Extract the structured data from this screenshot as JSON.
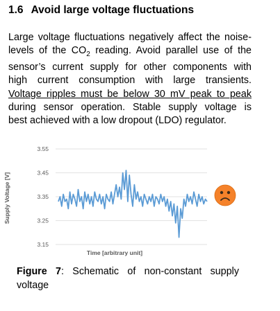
{
  "section": {
    "number": "1.6",
    "title": "Avoid large voltage fluctuations"
  },
  "paragraph": {
    "l1": "Large voltage fluctuations negatively affect the noise-",
    "l2a": "levels of the CO",
    "l2sub": "2",
    "l2b": " reading. Avoid parallel use of the",
    "l3": "sensor’s current supply for other components with",
    "l4": "high current consumption with large transients.",
    "l5": "Voltage ripples must be below 30 mV peak to peak",
    "l6": "during sensor operation. Stable supply voltage is",
    "l7": "best achieved with a low dropout (LDO) regulator."
  },
  "chart_data": {
    "type": "line",
    "xlabel": "Time [arbitrary unit]",
    "ylabel": "Supply Voltage [V]",
    "ylim": [
      3.15,
      3.55
    ],
    "yticks": [
      "3.55",
      "3.45",
      "3.35",
      "3.25",
      "3.15"
    ],
    "grid": true,
    "legend": "none",
    "series": [
      {
        "values": [
          3.33,
          3.35,
          3.31,
          3.36,
          3.33,
          3.34,
          3.3,
          3.37,
          3.32,
          3.36,
          3.34,
          3.31,
          3.38,
          3.33,
          3.35,
          3.3,
          3.37,
          3.33,
          3.36,
          3.32,
          3.35,
          3.31,
          3.37,
          3.34,
          3.33,
          3.36,
          3.32,
          3.35,
          3.3,
          3.36,
          3.34,
          3.33,
          3.37,
          3.32,
          3.36,
          3.4,
          3.35,
          3.39,
          3.34,
          3.45,
          3.38,
          3.46,
          3.33,
          3.44,
          3.36,
          3.31,
          3.4,
          3.34,
          3.37,
          3.33,
          3.35,
          3.31,
          3.36,
          3.34,
          3.32,
          3.35,
          3.33,
          3.36,
          3.31,
          3.35,
          3.34,
          3.32,
          3.36,
          3.33,
          3.35,
          3.31,
          3.34,
          3.29,
          3.33,
          3.27,
          3.32,
          3.24,
          3.31,
          3.18,
          3.3,
          3.26,
          3.34,
          3.31,
          3.36,
          3.33,
          3.35,
          3.32,
          3.37,
          3.34,
          3.31,
          3.36,
          3.33,
          3.35,
          3.32,
          3.34,
          3.33
        ],
        "color": "#5b9bd5"
      }
    ],
    "emoji": "sad-face-icon",
    "emoji_color": "#f5822a"
  },
  "figure": {
    "label": "Figure 7",
    "l1rest": ": Schematic of non-constant supply",
    "l2": "voltage"
  }
}
